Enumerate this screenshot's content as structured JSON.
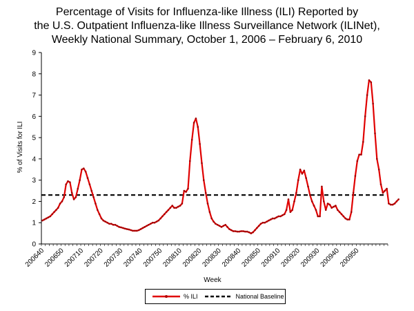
{
  "chart_data": {
    "type": "line",
    "title": [
      "Percentage of Visits for Influenza-like Illness (ILI) Reported by",
      "the U.S. Outpatient Influenza-like Illness Surveillance Network (ILINet),",
      "Weekly National Summary, October 1, 2006 – February 6, 2010"
    ],
    "xlabel": "Week",
    "ylabel": "% of Visits for ILI",
    "ylim": [
      0,
      9
    ],
    "yticks": [
      "0",
      "1",
      "2",
      "3",
      "4",
      "5",
      "6",
      "7",
      "8",
      "9"
    ],
    "xtick_labels": [
      "200640",
      "200650",
      "200710",
      "200720",
      "200730",
      "200740",
      "200750",
      "200810",
      "200820",
      "200830",
      "200840",
      "200850",
      "200910",
      "200920",
      "200930",
      "200940",
      "200950"
    ],
    "week_count": 176,
    "series": [
      {
        "name": "% ILI",
        "color": "#e00000",
        "values": [
          1.1,
          1.15,
          1.2,
          1.25,
          1.3,
          1.4,
          1.5,
          1.6,
          1.7,
          1.9,
          2.0,
          2.2,
          2.8,
          2.95,
          2.9,
          2.4,
          2.1,
          2.2,
          2.6,
          3.0,
          3.5,
          3.55,
          3.4,
          3.1,
          2.8,
          2.5,
          2.2,
          1.9,
          1.6,
          1.4,
          1.2,
          1.1,
          1.05,
          1.0,
          0.95,
          0.95,
          0.9,
          0.9,
          0.85,
          0.8,
          0.78,
          0.75,
          0.72,
          0.7,
          0.68,
          0.65,
          0.62,
          0.62,
          0.62,
          0.65,
          0.7,
          0.75,
          0.8,
          0.85,
          0.9,
          0.95,
          1.0,
          1.0,
          1.05,
          1.1,
          1.2,
          1.3,
          1.4,
          1.5,
          1.6,
          1.7,
          1.8,
          1.7,
          1.7,
          1.75,
          1.8,
          1.9,
          2.5,
          2.45,
          2.6,
          3.9,
          4.9,
          5.7,
          5.9,
          5.5,
          4.7,
          3.8,
          3.0,
          2.4,
          1.9,
          1.5,
          1.2,
          1.05,
          0.95,
          0.9,
          0.85,
          0.8,
          0.85,
          0.9,
          0.8,
          0.7,
          0.65,
          0.6,
          0.6,
          0.58,
          0.58,
          0.6,
          0.6,
          0.58,
          0.58,
          0.55,
          0.5,
          0.55,
          0.65,
          0.75,
          0.85,
          0.95,
          1.0,
          1.0,
          1.05,
          1.1,
          1.15,
          1.2,
          1.2,
          1.25,
          1.3,
          1.3,
          1.35,
          1.4,
          1.6,
          2.1,
          1.5,
          1.6,
          2.0,
          2.4,
          3.0,
          3.5,
          3.3,
          3.45,
          3.1,
          2.7,
          2.3,
          2.0,
          1.8,
          1.6,
          1.3,
          1.3,
          2.7,
          2.0,
          1.6,
          1.9,
          1.85,
          1.7,
          1.75,
          1.8,
          1.6,
          1.5,
          1.4,
          1.3,
          1.2,
          1.15,
          1.15,
          1.5,
          2.4,
          3.2,
          3.9,
          4.2,
          4.2,
          4.8,
          6.0,
          7.0,
          7.7,
          7.6,
          6.6,
          5.2,
          4.0,
          3.5,
          2.8,
          2.4,
          2.5,
          2.6,
          1.9,
          1.85,
          1.85,
          1.9,
          2.0,
          2.1
        ]
      },
      {
        "name": "National Baseline",
        "color": "#000000",
        "values": [
          2.3
        ]
      }
    ],
    "legend": [
      "% ILI",
      "National Baseline"
    ]
  }
}
